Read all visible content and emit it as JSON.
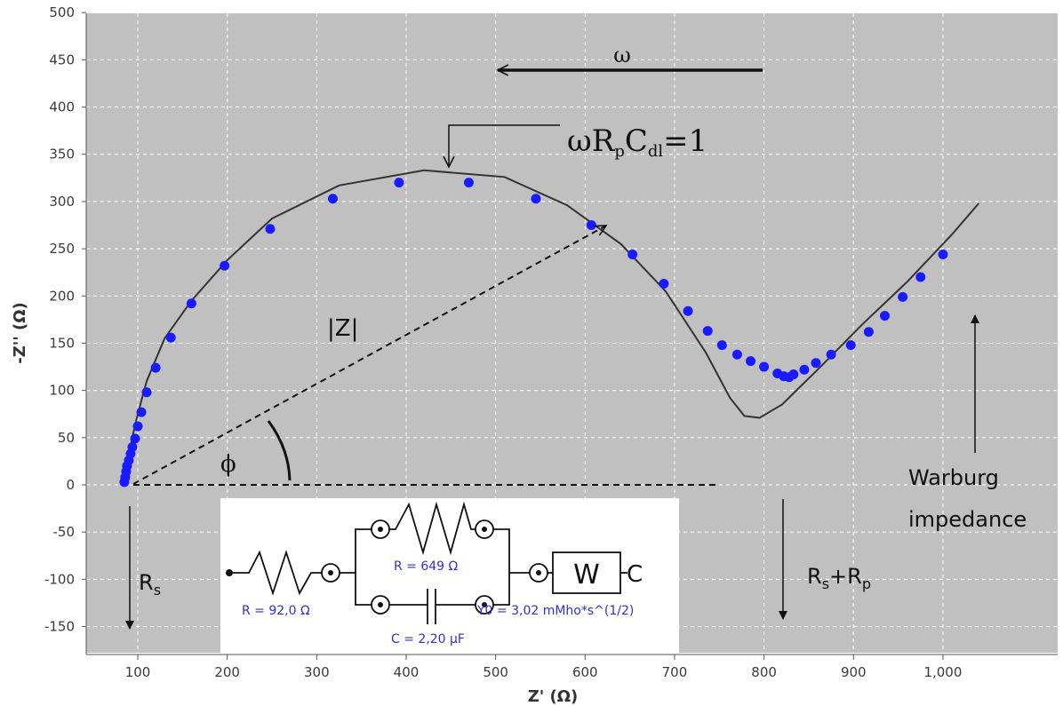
{
  "chart_data": {
    "type": "scatter",
    "xlabel": "Z' (Ω)",
    "ylabel": "-Z'' (Ω)",
    "xlim": [
      40,
      1080
    ],
    "ylim": [
      -170,
      500
    ],
    "x_ticks": [
      100,
      200,
      300,
      400,
      500,
      600,
      700,
      800,
      900,
      1000
    ],
    "x_tick_labels": [
      "100",
      "200",
      "300",
      "400",
      "500",
      "600",
      "700",
      "800",
      "900",
      "1,000"
    ],
    "y_ticks": [
      500,
      450,
      400,
      350,
      300,
      250,
      200,
      150,
      100,
      50,
      0,
      -50,
      -100,
      -150
    ],
    "y_tick_labels": [
      "500",
      "450",
      "400",
      "350",
      "300",
      "250",
      "200",
      "150",
      "100",
      "50",
      "0",
      "-50",
      "-100",
      "-150"
    ],
    "grid": true,
    "plot_background": "#c0c0c0",
    "series": [
      {
        "kind": "points",
        "color": "#1a1aff",
        "x": [
          85,
          86,
          87,
          88,
          90,
          92,
          94,
          97,
          100,
          104,
          110,
          120,
          137,
          160,
          197,
          248,
          318,
          392,
          470,
          545,
          607,
          653,
          688,
          715,
          737,
          753,
          770,
          785,
          800,
          815,
          822,
          828,
          833,
          845,
          858,
          875,
          897,
          917,
          935,
          955,
          975,
          1000
        ],
        "y": [
          3,
          8,
          14,
          20,
          26,
          33,
          40,
          49,
          62,
          77,
          98,
          124,
          156,
          192,
          232,
          271,
          303,
          320,
          320,
          303,
          275,
          244,
          213,
          184,
          163,
          148,
          138,
          131,
          125,
          118,
          115,
          114,
          117,
          122,
          129,
          138,
          148,
          162,
          179,
          199,
          220,
          244
        ]
      },
      {
        "kind": "line",
        "color": "#333333",
        "x": [
          85,
          87,
          90,
          95,
          100,
          110,
          130,
          160,
          200,
          250,
          325,
          420,
          510,
          580,
          640,
          690,
          735,
          762,
          778,
          795,
          820,
          860,
          910,
          960,
          1010,
          1040
        ],
        "y": [
          0,
          15,
          32,
          55,
          75,
          110,
          155,
          195,
          238,
          282,
          317,
          333,
          326,
          296,
          255,
          205,
          140,
          92,
          73,
          71,
          85,
          122,
          170,
          215,
          265,
          298
        ]
      }
    ],
    "annotations": {
      "omega": "ω",
      "resonance_omega": "ωR",
      "resonance_p": "p",
      "resonance_c": "C",
      "resonance_dl": "dl",
      "resonance_eq": "=1",
      "modulus": "|Z|",
      "phi": "ϕ",
      "rs_main": "R",
      "rs_sub": "s",
      "rsrp_r1": "R",
      "rsrp_s": "s",
      "rsrp_plus": "+R",
      "rsrp_p": "p",
      "warburg_line1": "Warburg",
      "warburg_line2": "impedance"
    },
    "circuit": {
      "r_label": "R = 92,0 Ω",
      "rp_label": "R = 649 Ω",
      "c_label": "C = 2,20 μF",
      "w_label": "W",
      "y0_label": "Y0 = 3,02 mMho*s^(1/2)",
      "end_label": "C"
    }
  }
}
